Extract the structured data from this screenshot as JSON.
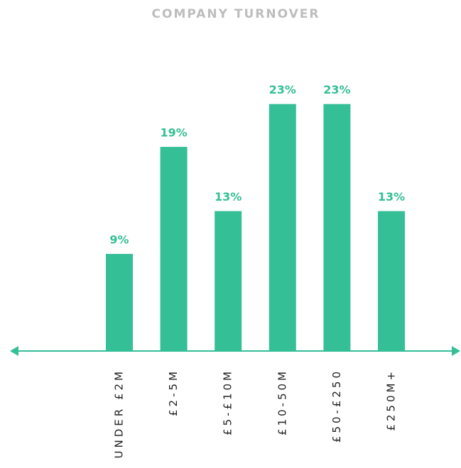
{
  "chart_data": {
    "type": "bar",
    "title": "COMPANY TURNOVER",
    "categories": [
      "UNDER £2M",
      "£2-5M",
      "£5-£10M",
      "£10-50M",
      "£50-£250",
      "£250M+"
    ],
    "values": [
      9,
      19,
      13,
      23,
      23,
      13
    ],
    "value_labels": [
      "9%",
      "19%",
      "13%",
      "23%",
      "23%",
      "13%"
    ],
    "color": "#35bf97"
  }
}
